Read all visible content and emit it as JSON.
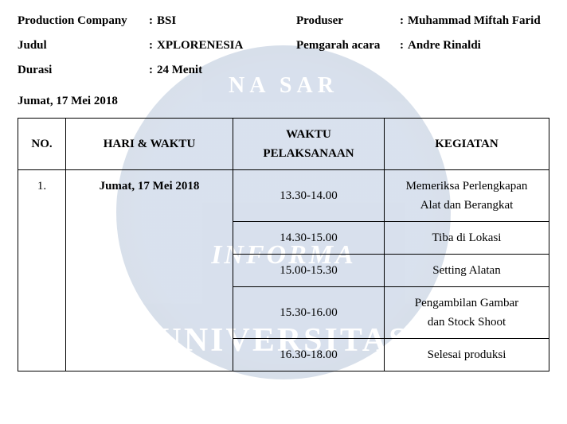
{
  "watermark": {
    "arc_top": "NA  SAR",
    "center": "INFORMA",
    "bottom": "UNIVERSITAS"
  },
  "header": {
    "left": [
      {
        "label": "Production Company",
        "value": "BSI"
      },
      {
        "label": "Judul",
        "value": "XPLORENESIA"
      },
      {
        "label": "Durasi",
        "value": "24 Menit"
      }
    ],
    "right": [
      {
        "label": "Produser",
        "value": "Muhammad Miftah Farid"
      },
      {
        "label": "Pemgarah acara",
        "value": "Andre Rinaldi"
      }
    ]
  },
  "date_line": "Jumat, 17 Mei 2018",
  "table": {
    "columns": {
      "no": "NO.",
      "hari": "HARI & WAKTU",
      "waktu_l1": "WAKTU",
      "waktu_l2": "PELAKSANAAN",
      "kegiatan": "KEGIATAN"
    },
    "row_no": "1.",
    "row_date": "Jumat, 17 Mei 2018",
    "rows": [
      {
        "waktu": "13.30-14.00",
        "kegiatan_l1": "Memeriksa Perlengkapan",
        "kegiatan_l2": "Alat dan Berangkat"
      },
      {
        "waktu": "14.30-15.00",
        "kegiatan_l1": "Tiba di Lokasi",
        "kegiatan_l2": ""
      },
      {
        "waktu": "15.00-15.30",
        "kegiatan_l1": "Setting Alatan",
        "kegiatan_l2": ""
      },
      {
        "waktu": "15.30-16.00",
        "kegiatan_l1": "Pengambilan Gambar",
        "kegiatan_l2": "dan Stock Shoot"
      },
      {
        "waktu": "16.30-18.00",
        "kegiatan_l1": "Selesai produksi",
        "kegiatan_l2": ""
      }
    ]
  },
  "colors": {
    "text": "#000000",
    "border": "#000000",
    "background": "#ffffff",
    "watermark_base": "#2d5a9e"
  }
}
